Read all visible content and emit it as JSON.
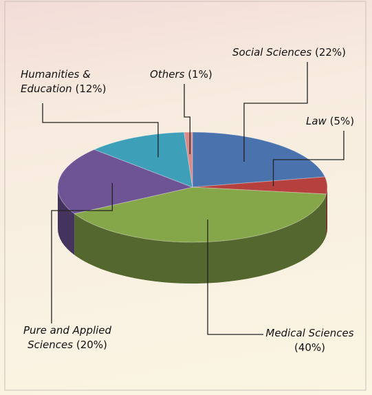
{
  "chart_data": {
    "type": "pie3d",
    "categories": [
      "Social Sciences",
      "Law",
      "Medical Sciences",
      "Pure and Applied Sciences",
      "Humanities & Education",
      "Others"
    ],
    "values": [
      22,
      5,
      40,
      20,
      12,
      1
    ],
    "value_labels": [
      "(22%)",
      "(5%)",
      "(40%)",
      "(20%)",
      "(12%)",
      "(1%)"
    ],
    "colors": [
      "#4a72ac",
      "#b5403d",
      "#86a64a",
      "#6e5395",
      "#3d9fb8",
      "#d98a8a"
    ]
  }
}
